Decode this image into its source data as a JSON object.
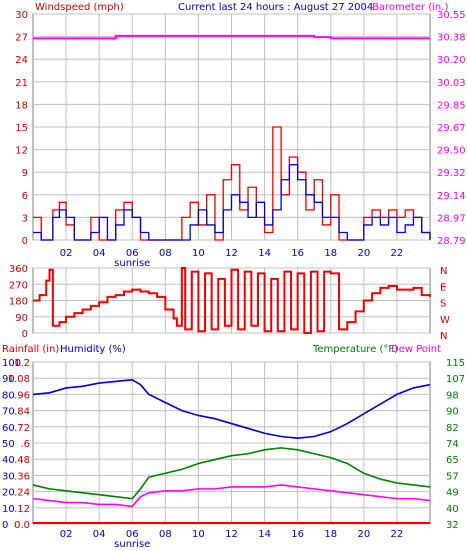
{
  "header": {
    "windspeed_label": "Windspeed (mph)",
    "title": "Current last 24 hours : August 27 2004",
    "barometer_label": "Barometer (in.)"
  },
  "lower_header": {
    "rainfall_label": "Rainfall (in)",
    "humidity_label": "Humidity (%)",
    "temperature_label": "Temperature (°F)",
    "dewpoint_label": "Dew Point"
  },
  "colors": {
    "wind_avg": "#0000cc",
    "wind_gust": "#ee0000",
    "barometer": "#ff00ff",
    "direction": "#ee0000",
    "humidity": "#0000cc",
    "temperature": "#008000",
    "dewpoint": "#ff00ff",
    "rainfall": "#ee0000",
    "grid": "#c0c0c0",
    "axis_text_left": "#cc0000",
    "axis_text_bottom": "#0000cc",
    "text_blue": "#0000cc",
    "text_green": "#008000"
  },
  "chart_data": [
    {
      "type": "line",
      "id": "wind_barometer",
      "x_ticks": [
        "02",
        "04",
        "06",
        "08",
        "10",
        "12",
        "14",
        "16",
        "18",
        "20",
        "22"
      ],
      "x_annotation": "sunrise",
      "y_left": {
        "label": "Windspeed (mph)",
        "ticks": [
          "0",
          "3",
          "6",
          "9",
          "12",
          "15",
          "18",
          "21",
          "24",
          "27",
          "30"
        ],
        "ylim": [
          0,
          30
        ]
      },
      "y_right": {
        "label": "Barometer (in.)",
        "ticks": [
          "28.79",
          "28.97",
          "29.14",
          "29.32",
          "29.50",
          "29.67",
          "29.85",
          "30.03",
          "30.20",
          "30.38",
          "30.55"
        ],
        "ylim": [
          28.79,
          30.55
        ]
      },
      "grid": true,
      "series": [
        {
          "name": "Barometer (in.)",
          "axis": "right",
          "x": [
            0.0,
            4.5,
            5.0,
            9.0,
            9.5,
            16.5,
            17.0,
            18.0,
            19.0,
            22.0,
            24.0
          ],
          "y": [
            30.36,
            30.36,
            30.38,
            30.38,
            30.38,
            30.38,
            30.37,
            30.36,
            30.36,
            30.36,
            30.36
          ]
        },
        {
          "x": [
            0.0,
            0.5,
            1.0,
            1.2,
            1.6,
            2.0,
            2.5,
            3.0,
            3.5,
            4.0,
            4.5,
            5.0,
            5.5,
            6.0,
            6.5,
            7.0,
            7.5,
            8.0,
            8.5,
            9.0,
            9.5,
            10.0,
            10.5,
            11.0,
            11.5,
            12.0,
            12.5,
            13.0,
            13.5,
            14.0,
            14.5,
            15.0,
            15.5,
            16.0,
            16.5,
            17.0,
            17.5,
            18.0,
            18.5,
            19.0,
            19.5,
            20.0,
            20.5,
            21.0,
            21.5,
            22.0,
            22.5,
            23.0,
            23.5,
            24.0
          ],
          "y": [
            1,
            0,
            0,
            3,
            4,
            3,
            0,
            0,
            1,
            3,
            0,
            2,
            4,
            3,
            1,
            0,
            0,
            0,
            0,
            0,
            2,
            4,
            2,
            1,
            4,
            6,
            5,
            3,
            5,
            2,
            4,
            8,
            10,
            8,
            6,
            5,
            3,
            3,
            1,
            0,
            0,
            2,
            3,
            2,
            3,
            1,
            2,
            3,
            1,
            0
          ]
        },
        {
          "x": [
            0.0,
            0.5,
            1.0,
            1.2,
            1.6,
            2.0,
            2.5,
            3.0,
            3.5,
            4.0,
            4.5,
            5.0,
            5.5,
            6.0,
            6.5,
            7.0,
            7.5,
            8.0,
            8.5,
            9.0,
            9.5,
            10.0,
            10.5,
            11.0,
            11.5,
            12.0,
            12.5,
            13.0,
            13.5,
            14.0,
            14.5,
            15.0,
            15.5,
            16.0,
            16.5,
            17.0,
            17.5,
            18.0,
            18.5,
            19.0,
            19.5,
            20.0,
            20.5,
            21.0,
            21.5,
            22.0,
            22.5,
            23.0,
            23.5,
            24.0
          ],
          "y": [
            3,
            0,
            0,
            4,
            5,
            2,
            0,
            0,
            3,
            0,
            0,
            4,
            5,
            3,
            0,
            0,
            0,
            0,
            0,
            3,
            5,
            2,
            6,
            0,
            8,
            10,
            4,
            7,
            3,
            1,
            15,
            6,
            11,
            9,
            4,
            8,
            2,
            6,
            0,
            0,
            0,
            3,
            4,
            3,
            4,
            3,
            4,
            3,
            1,
            0
          ]
        }
      ]
    },
    {
      "type": "line",
      "id": "wind_direction",
      "y_left": {
        "ticks": [
          "0",
          "90",
          "180",
          "270",
          "360"
        ],
        "ylim": [
          0,
          360
        ]
      },
      "y_right": {
        "ticks": [
          "N",
          "W",
          "S",
          "E",
          "N"
        ]
      },
      "grid": true,
      "series": [
        {
          "x": [
            0.0,
            0.4,
            0.8,
            1.0,
            1.2,
            1.6,
            2.0,
            2.5,
            3.0,
            3.5,
            4.0,
            4.5,
            5.0,
            5.5,
            6.0,
            6.5,
            7.0,
            7.5,
            8.0,
            8.5,
            8.7,
            9.0,
            9.2,
            9.6,
            10.0,
            10.4,
            10.8,
            11.2,
            11.6,
            12.0,
            12.4,
            12.8,
            13.2,
            13.6,
            14.0,
            14.4,
            14.8,
            15.2,
            15.6,
            16.0,
            16.4,
            16.8,
            17.2,
            17.6,
            18.0,
            18.5,
            19.0,
            19.5,
            20.0,
            20.5,
            21.0,
            21.5,
            22.0,
            22.5,
            23.0,
            23.5,
            24.0
          ],
          "y": [
            180,
            210,
            290,
            350,
            40,
            60,
            90,
            110,
            130,
            150,
            170,
            200,
            210,
            230,
            240,
            230,
            220,
            200,
            130,
            80,
            40,
            360,
            20,
            340,
            10,
            330,
            20,
            300,
            40,
            350,
            20,
            340,
            40,
            330,
            10,
            300,
            10,
            340,
            20,
            330,
            0,
            340,
            10,
            340,
            330,
            20,
            60,
            120,
            180,
            220,
            250,
            260,
            240,
            240,
            250,
            210,
            200
          ]
        }
      ]
    },
    {
      "type": "line",
      "id": "humidity_temperature",
      "x_ticks": [
        "02",
        "04",
        "06",
        "08",
        "10",
        "12",
        "14",
        "16",
        "18",
        "20",
        "22"
      ],
      "x_annotation": "sunrise",
      "y_left_rain": {
        "label": "Rainfall (in)",
        "ticks": [
          "0.0",
          ".12",
          ".24",
          ".36",
          ".48",
          ".6",
          ".72",
          ".84",
          ".96",
          "1.08",
          "1.2"
        ]
      },
      "y_left_humidity": {
        "label": "Humidity (%)",
        "ticks": [
          "0",
          "10",
          "20",
          "30",
          "40",
          "50",
          "60",
          "70",
          "80",
          "90",
          "100"
        ],
        "ylim": [
          0,
          100
        ]
      },
      "y_right": {
        "label": "Temperature (°F)",
        "ticks": [
          "32",
          "40",
          "49",
          "57",
          "65",
          "74",
          "82",
          "90",
          "98",
          "107",
          "115"
        ],
        "ylim": [
          32,
          115
        ]
      },
      "grid": true,
      "series": [
        {
          "name": "Humidity (%)",
          "axis": "left",
          "x": [
            0.0,
            1.0,
            2.0,
            3.0,
            4.0,
            5.0,
            6.0,
            6.5,
            7.0,
            8.0,
            9.0,
            10.0,
            11.0,
            12.0,
            13.0,
            14.0,
            15.0,
            16.0,
            17.0,
            18.0,
            19.0,
            20.0,
            21.0,
            22.0,
            23.0,
            24.0
          ],
          "y": [
            80,
            81,
            84,
            85,
            87,
            88,
            89,
            86,
            80,
            75,
            70,
            67,
            65,
            62,
            59,
            56,
            54,
            53,
            54,
            57,
            62,
            68,
            74,
            80,
            84,
            86
          ]
        },
        {
          "name": "Temperature (°F)",
          "axis": "right",
          "x": [
            0.0,
            1.0,
            2.0,
            3.0,
            4.0,
            5.0,
            6.0,
            6.5,
            7.0,
            8.0,
            9.0,
            10.0,
            11.0,
            12.0,
            13.0,
            14.0,
            15.0,
            16.0,
            17.0,
            18.0,
            19.0,
            20.0,
            21.0,
            22.0,
            23.0,
            24.0
          ],
          "y": [
            52,
            50,
            49,
            48,
            47,
            46,
            45,
            50,
            56,
            58,
            60,
            63,
            65,
            67,
            68,
            70,
            71,
            70,
            68,
            66,
            63,
            58,
            55,
            53,
            52,
            51
          ]
        },
        {
          "name": "Dew Point",
          "axis": "right",
          "x": [
            0.0,
            1.0,
            2.0,
            3.0,
            4.0,
            5.0,
            6.0,
            6.5,
            7.0,
            8.0,
            9.0,
            10.0,
            11.0,
            12.0,
            13.0,
            14.0,
            15.0,
            16.0,
            17.0,
            18.0,
            19.0,
            20.0,
            21.0,
            22.0,
            23.0,
            24.0
          ],
          "y": [
            45,
            44,
            43,
            43,
            42,
            42,
            41,
            46,
            48,
            49,
            49,
            50,
            50,
            51,
            51,
            51,
            52,
            51,
            50,
            49,
            48,
            47,
            46,
            45,
            45,
            44
          ]
        },
        {
          "name": "Rainfall (in)",
          "axis": "rain",
          "x": [
            0,
            24
          ],
          "y": [
            0,
            0
          ]
        }
      ]
    }
  ]
}
